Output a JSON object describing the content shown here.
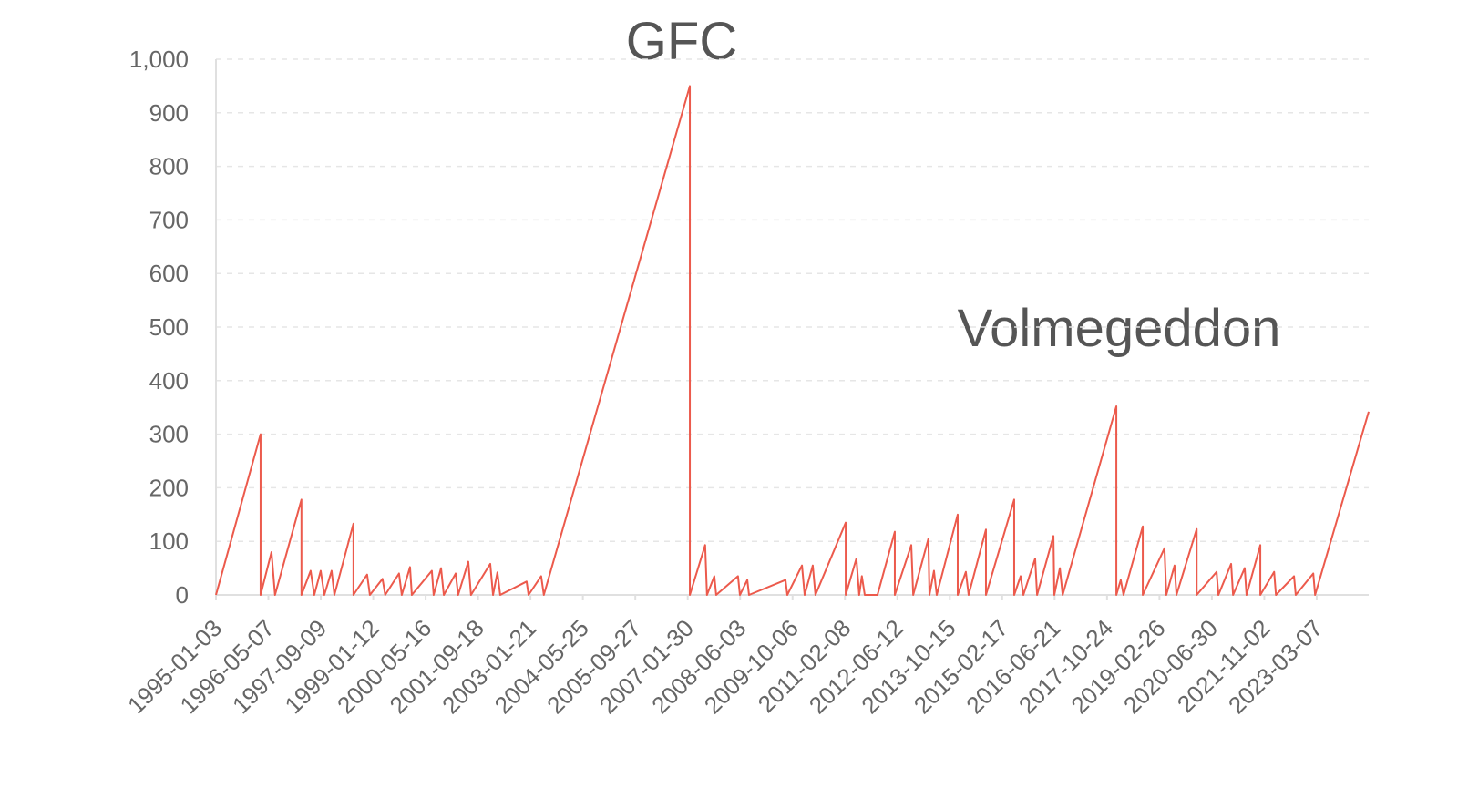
{
  "chart_data": {
    "type": "line",
    "annotations": [
      "GFC",
      "Volmegeddon"
    ],
    "x": [
      "1995-01-03",
      "1996-02-24",
      "1996-02-24",
      "1996-06-05",
      "1996-07-08",
      "1997-03-12",
      "1997-03-12",
      "1997-06-06",
      "1997-07-10",
      "1997-09-08",
      "1997-10-12",
      "1997-12-19",
      "1998-01-14",
      "1998-07-11",
      "1998-07-11",
      "1998-11-16",
      "1998-12-12",
      "1999-04-09",
      "1999-05-04",
      "1999-09-10",
      "1999-10-06",
      "1999-12-22",
      "2000-01-08",
      "2000-07-13",
      "2000-07-30",
      "2000-10-07",
      "2000-11-02",
      "2001-02-21",
      "2001-03-16",
      "2001-06-19",
      "2001-07-14",
      "2002-01-10",
      "2002-02-05",
      "2002-03-18",
      "2002-04-13",
      "2002-12-16",
      "2003-01-03",
      "2003-05-01",
      "2003-05-26",
      "2007-02-19",
      "2007-02-19",
      "2007-07-12",
      "2007-07-29",
      "2007-10-06",
      "2007-10-23",
      "2008-05-14",
      "2008-06-01",
      "2008-08-09",
      "2008-08-25",
      "2009-08-01",
      "2009-08-18",
      "2010-01-02",
      "2010-01-27",
      "2010-04-13",
      "2010-05-08",
      "2011-02-15",
      "2011-02-15",
      "2011-05-26",
      "2011-06-21",
      "2011-07-16",
      "2011-08-12",
      "2011-12-09",
      "2012-05-19",
      "2012-05-19",
      "2012-10-20",
      "2012-11-07",
      "2013-03-29",
      "2013-04-08",
      "2013-05-20",
      "2013-06-15",
      "2013-12-28",
      "2013-12-28",
      "2014-03-14",
      "2014-04-09",
      "2014-09-18",
      "2014-09-18",
      "2015-06-09",
      "2015-06-09",
      "2015-08-08",
      "2015-09-03",
      "2015-12-22",
      "2016-01-09",
      "2016-06-10",
      "2016-06-18",
      "2016-08-09",
      "2016-09-04",
      "2018-01-19",
      "2018-01-19",
      "2018-03-01",
      "2018-03-27",
      "2018-09-23",
      "2018-09-23",
      "2019-04-14",
      "2019-05-01",
      "2019-07-17",
      "2019-08-04",
      "2020-02-09",
      "2020-02-09",
      "2020-08-13",
      "2020-08-30",
      "2020-12-27",
      "2021-01-14",
      "2021-05-03",
      "2021-05-20",
      "2021-09-26",
      "2021-09-26",
      "2022-02-02",
      "2022-02-19",
      "2022-08-07",
      "2022-08-23",
      "2023-02-03",
      "2023-02-20",
      "2024-07-05"
    ],
    "values": [
      0,
      300,
      0,
      80,
      0,
      178,
      0,
      45,
      0,
      45,
      0,
      45,
      0,
      133,
      0,
      38,
      0,
      30,
      0,
      40,
      0,
      52,
      0,
      45,
      0,
      50,
      0,
      40,
      0,
      62,
      0,
      58,
      0,
      42,
      0,
      25,
      0,
      35,
      0,
      950,
      0,
      93,
      0,
      35,
      0,
      35,
      0,
      28,
      0,
      28,
      0,
      55,
      0,
      55,
      0,
      135,
      0,
      68,
      0,
      35,
      0,
      0,
      118,
      0,
      93,
      0,
      105,
      0,
      45,
      0,
      150,
      0,
      43,
      0,
      122,
      0,
      178,
      0,
      35,
      0,
      68,
      0,
      110,
      0,
      50,
      0,
      352,
      0,
      28,
      0,
      128,
      0,
      87,
      0,
      55,
      0,
      123,
      0,
      43,
      0,
      58,
      0,
      50,
      0,
      93,
      0,
      43,
      0,
      35,
      0,
      40,
      0,
      342
    ],
    "color": "#ec5a4c",
    "xlim": [
      "1995-01-03",
      "2024-07-05"
    ],
    "xticks": [
      "1995-01-03",
      "1996-05-07",
      "1997-09-09",
      "1999-01-12",
      "2000-05-16",
      "2001-09-18",
      "2003-01-21",
      "2004-05-25",
      "2005-09-27",
      "2007-01-30",
      "2008-06-03",
      "2009-10-06",
      "2011-02-08",
      "2012-06-12",
      "2013-10-15",
      "2015-02-17",
      "2016-06-21",
      "2017-10-24",
      "2019-02-26",
      "2020-06-30",
      "2021-11-02",
      "2023-03-07"
    ],
    "ylim": [
      0,
      1000
    ],
    "yticks": [
      0,
      100,
      200,
      300,
      400,
      500,
      600,
      700,
      800,
      900,
      {
        "value": 1000,
        "label": "1,000"
      }
    ],
    "grid": true
  }
}
